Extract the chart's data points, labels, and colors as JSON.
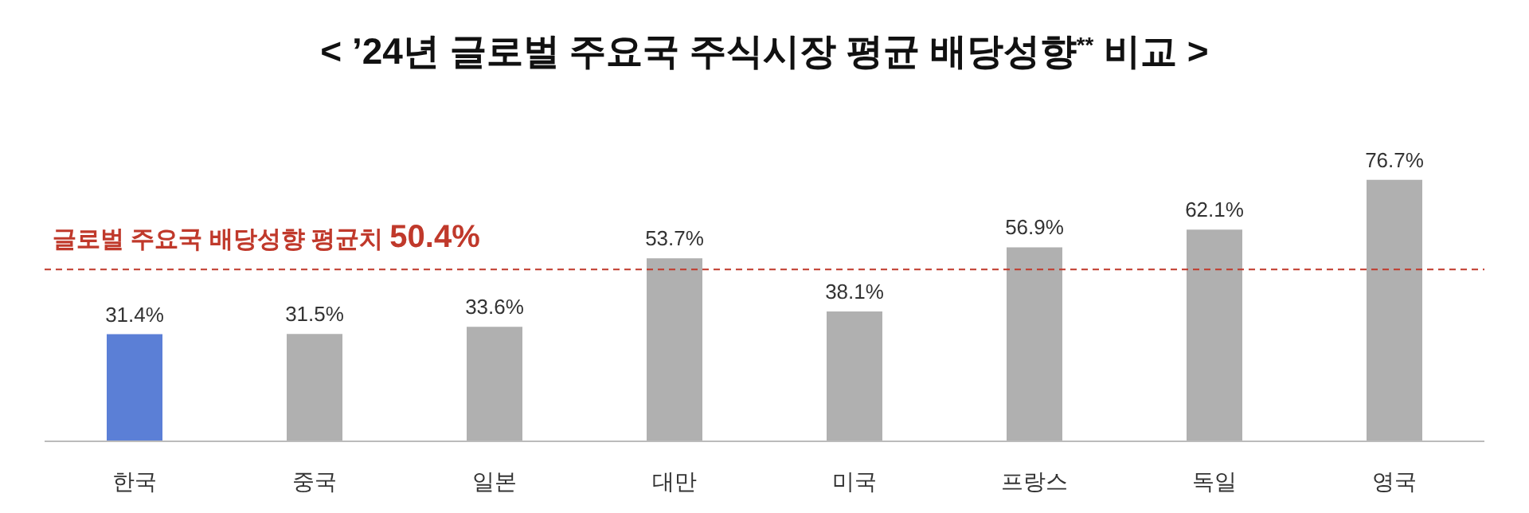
{
  "chart_data": {
    "type": "bar",
    "title": "< ’24년 글로벌 주요국 주식시장 평균 배당성향$^{**}$ 비교 >",
    "categories": [
      "한국",
      "중국",
      "일본",
      "대만",
      "미국",
      "프랑스",
      "독일",
      "영국"
    ],
    "values": [
      31.4,
      31.5,
      33.6,
      53.7,
      38.1,
      56.9,
      62.1,
      76.7
    ],
    "value_labels": [
      "31.4%",
      "31.5%",
      "33.6%",
      "53.7%",
      "38.1%",
      "56.9%",
      "62.1%",
      "76.7%"
    ],
    "colors": [
      "#5b7fd6",
      "#b0b0b0",
      "#b0b0b0",
      "#b0b0b0",
      "#b0b0b0",
      "#b0b0b0",
      "#b0b0b0",
      "#b0b0b0"
    ],
    "ref_lines": [
      {
        "axis": "y",
        "value": 50.4,
        "label": "글로벌 주요국 배당성향 평균치 50.4%",
        "color": "#c0392b",
        "line_style": "dashed"
      }
    ],
    "grid": false,
    "legend": false
  }
}
